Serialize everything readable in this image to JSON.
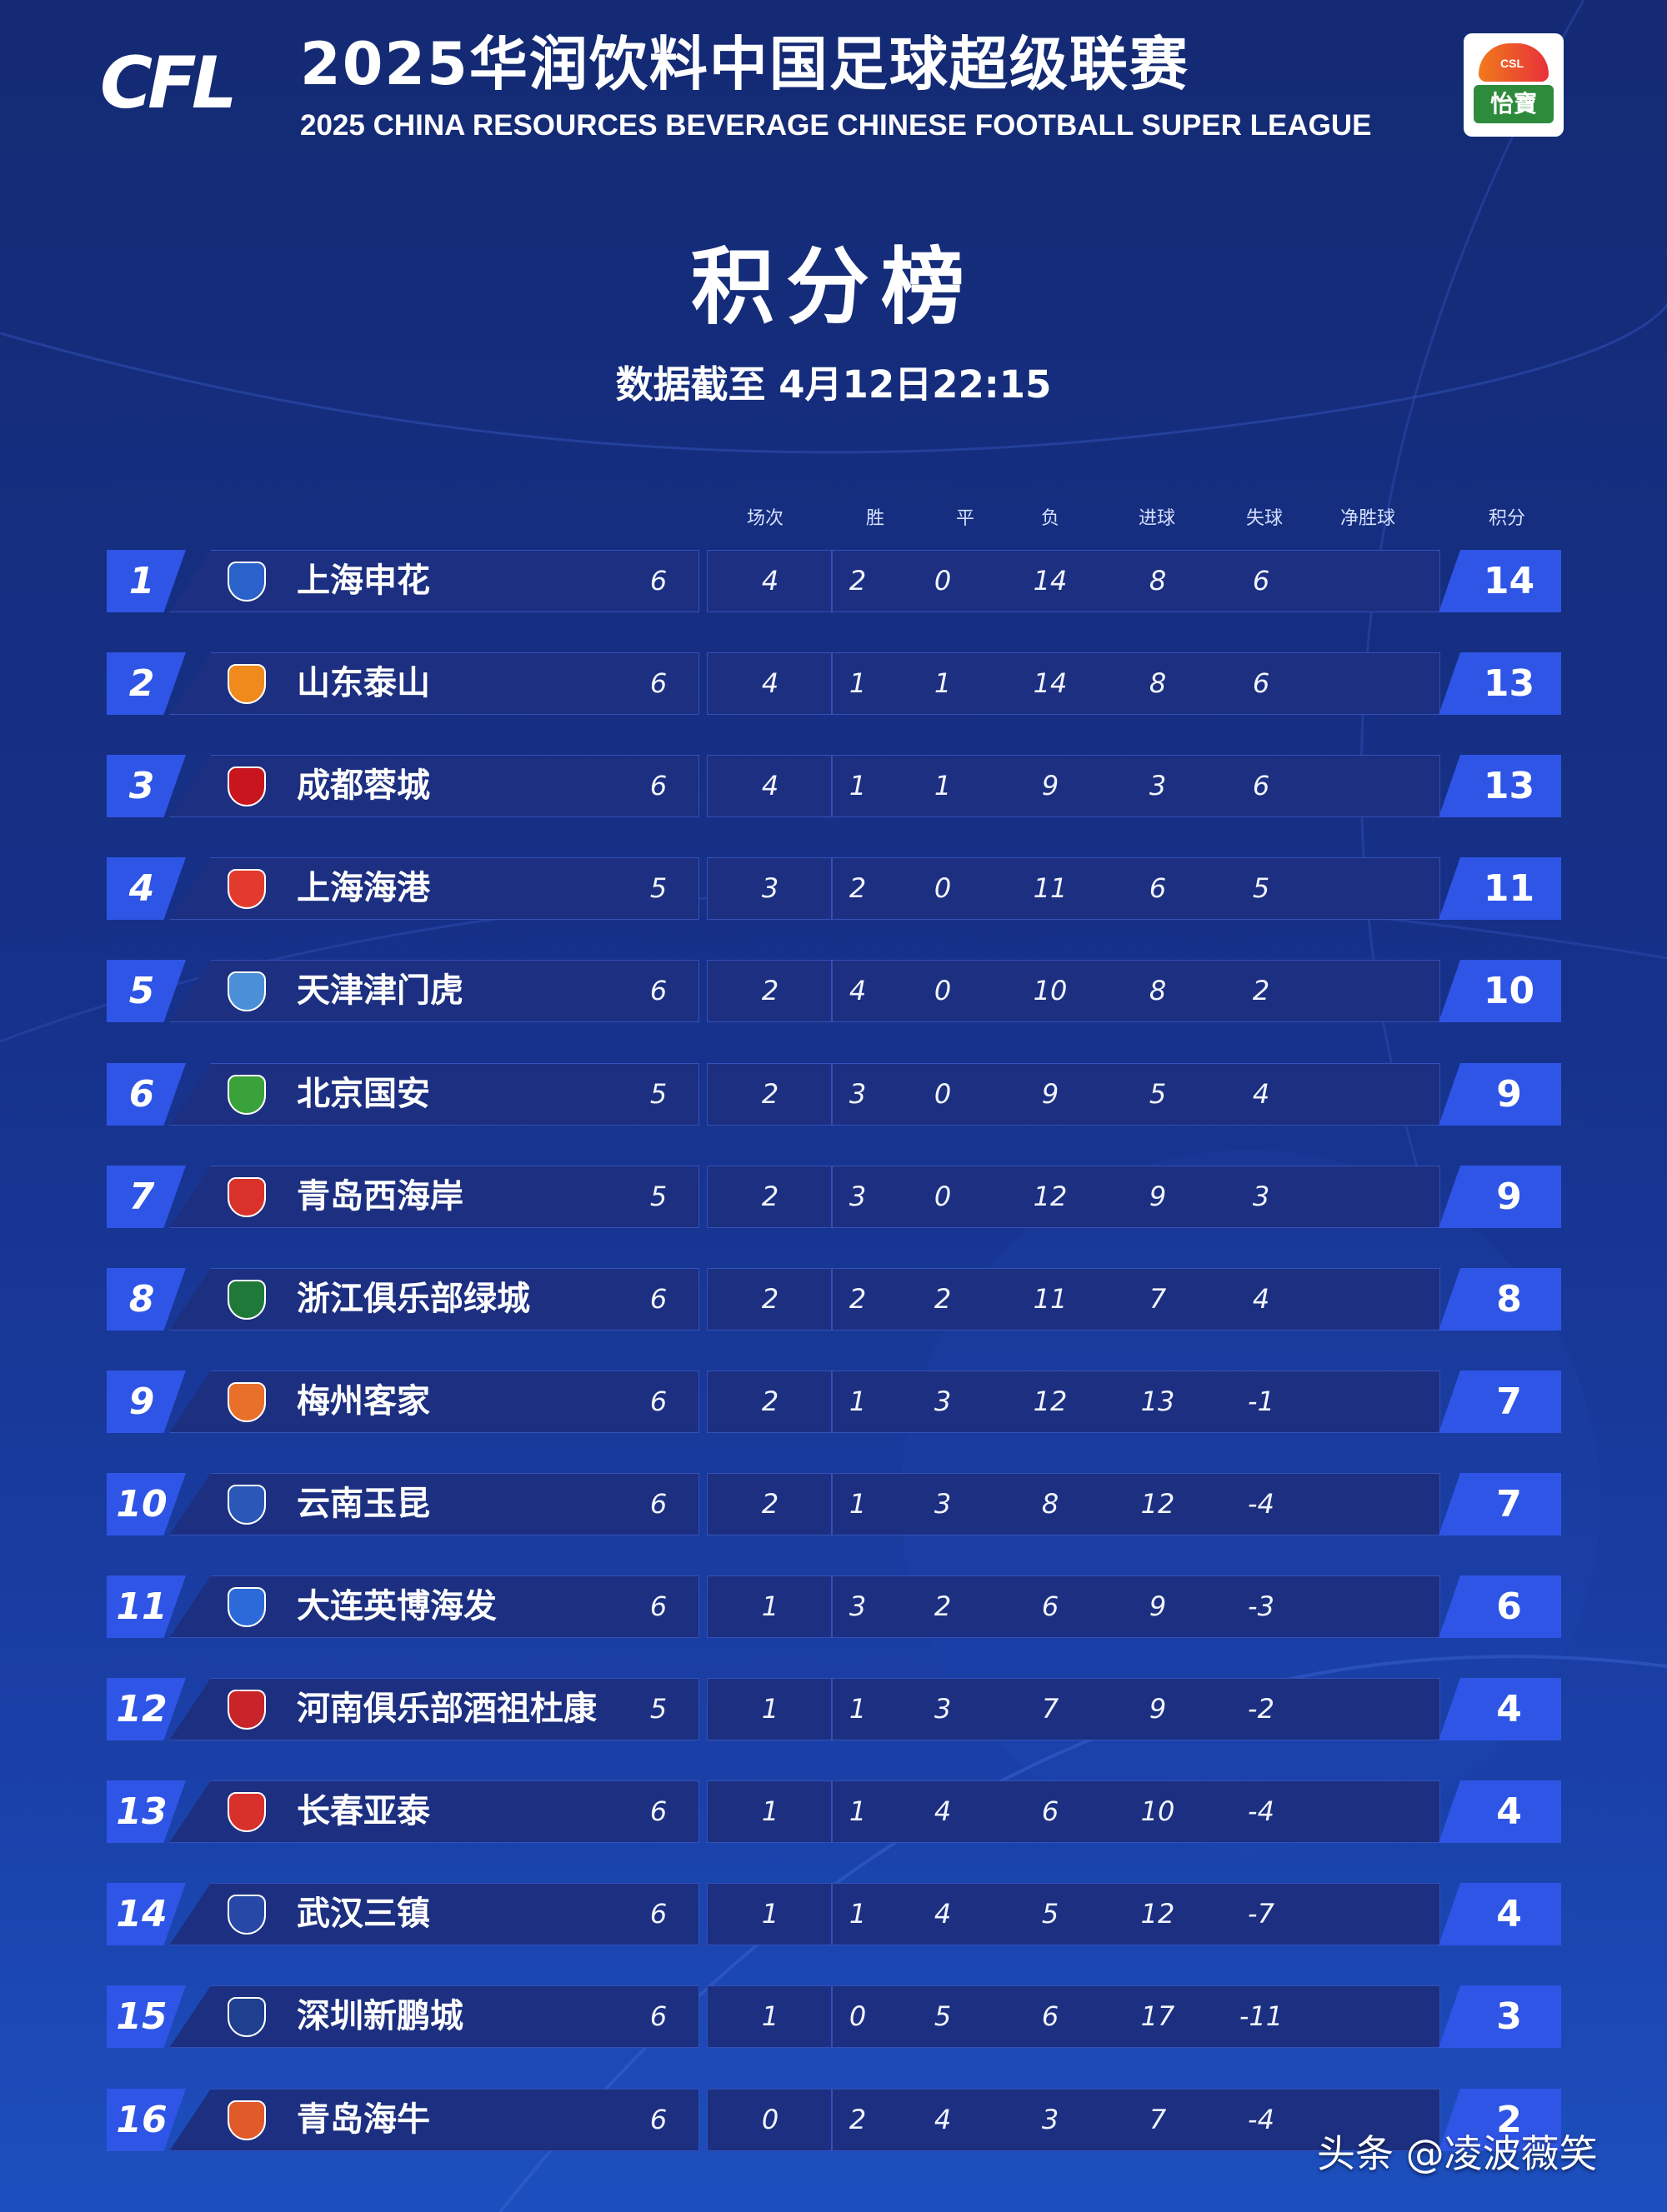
{
  "header": {
    "logo_text": "CFL",
    "league_cn": "2025华润饮料中国足球超级联赛",
    "league_en": "2025 CHINA RESOURCES BEVERAGE CHINESE FOOTBALL SUPER LEAGUE",
    "sponsor_ring": "CSL",
    "sponsor_brand": "怡寶"
  },
  "page": {
    "title": "积分榜",
    "subtitle": "数据截至 4月12日22:15"
  },
  "columns": {
    "played": "场次",
    "won": "胜",
    "drawn": "平",
    "lost": "负",
    "gf": "进球",
    "ga": "失球",
    "gd": "净胜球",
    "pts": "积分"
  },
  "accent_color": "#2f55e6",
  "rows": [
    {
      "rank": "1",
      "team": "上海申花",
      "played": "6",
      "won": "4",
      "drawn": "2",
      "lost": "0",
      "gf": "14",
      "ga": "8",
      "gd": "6",
      "pts": "14",
      "crest_color": "#2a62c9"
    },
    {
      "rank": "2",
      "team": "山东泰山",
      "played": "6",
      "won": "4",
      "drawn": "1",
      "lost": "1",
      "gf": "14",
      "ga": "8",
      "gd": "6",
      "pts": "13",
      "crest_color": "#f08a1c"
    },
    {
      "rank": "3",
      "team": "成都蓉城",
      "played": "6",
      "won": "4",
      "drawn": "1",
      "lost": "1",
      "gf": "9",
      "ga": "3",
      "gd": "6",
      "pts": "13",
      "crest_color": "#c8151e"
    },
    {
      "rank": "4",
      "team": "上海海港",
      "played": "5",
      "won": "3",
      "drawn": "2",
      "lost": "0",
      "gf": "11",
      "ga": "6",
      "gd": "5",
      "pts": "11",
      "crest_color": "#e23a2c"
    },
    {
      "rank": "5",
      "team": "天津津门虎",
      "played": "6",
      "won": "2",
      "drawn": "4",
      "lost": "0",
      "gf": "10",
      "ga": "8",
      "gd": "2",
      "pts": "10",
      "crest_color": "#4a8fd8"
    },
    {
      "rank": "6",
      "team": "北京国安",
      "played": "5",
      "won": "2",
      "drawn": "3",
      "lost": "0",
      "gf": "9",
      "ga": "5",
      "gd": "4",
      "pts": "9",
      "crest_color": "#3aa23a"
    },
    {
      "rank": "7",
      "team": "青岛西海岸",
      "played": "5",
      "won": "2",
      "drawn": "3",
      "lost": "0",
      "gf": "12",
      "ga": "9",
      "gd": "3",
      "pts": "9",
      "crest_color": "#d8322a"
    },
    {
      "rank": "8",
      "team": "浙江俱乐部绿城",
      "played": "6",
      "won": "2",
      "drawn": "2",
      "lost": "2",
      "gf": "11",
      "ga": "7",
      "gd": "4",
      "pts": "8",
      "crest_color": "#1f7a3a"
    },
    {
      "rank": "9",
      "team": "梅州客家",
      "played": "6",
      "won": "2",
      "drawn": "1",
      "lost": "3",
      "gf": "12",
      "ga": "13",
      "gd": "-1",
      "pts": "7",
      "crest_color": "#e8702a"
    },
    {
      "rank": "10",
      "team": "云南玉昆",
      "played": "6",
      "won": "2",
      "drawn": "1",
      "lost": "3",
      "gf": "8",
      "ga": "12",
      "gd": "-4",
      "pts": "7",
      "crest_color": "#2b58b8"
    },
    {
      "rank": "11",
      "team": "大连英博海发",
      "played": "6",
      "won": "1",
      "drawn": "3",
      "lost": "2",
      "gf": "6",
      "ga": "9",
      "gd": "-3",
      "pts": "6",
      "crest_color": "#2b6ad8"
    },
    {
      "rank": "12",
      "team": "河南俱乐部酒祖杜康",
      "played": "5",
      "won": "1",
      "drawn": "1",
      "lost": "3",
      "gf": "7",
      "ga": "9",
      "gd": "-2",
      "pts": "4",
      "crest_color": "#c8242a"
    },
    {
      "rank": "13",
      "team": "长春亚泰",
      "played": "6",
      "won": "1",
      "drawn": "1",
      "lost": "4",
      "gf": "6",
      "ga": "10",
      "gd": "-4",
      "pts": "4",
      "crest_color": "#d8302a"
    },
    {
      "rank": "14",
      "team": "武汉三镇",
      "played": "6",
      "won": "1",
      "drawn": "1",
      "lost": "4",
      "gf": "5",
      "ga": "12",
      "gd": "-7",
      "pts": "4",
      "crest_color": "#2848a8"
    },
    {
      "rank": "15",
      "team": "深圳新鹏城",
      "played": "6",
      "won": "1",
      "drawn": "0",
      "lost": "5",
      "gf": "6",
      "ga": "17",
      "gd": "-11",
      "pts": "3",
      "crest_color": "#1f3f8f"
    },
    {
      "rank": "16",
      "team": "青岛海牛",
      "played": "6",
      "won": "0",
      "drawn": "2",
      "lost": "4",
      "gf": "3",
      "ga": "7",
      "gd": "-4",
      "pts": "2",
      "crest_color": "#e05a2a"
    }
  ],
  "watermark": "头条 @凌波薇笑"
}
